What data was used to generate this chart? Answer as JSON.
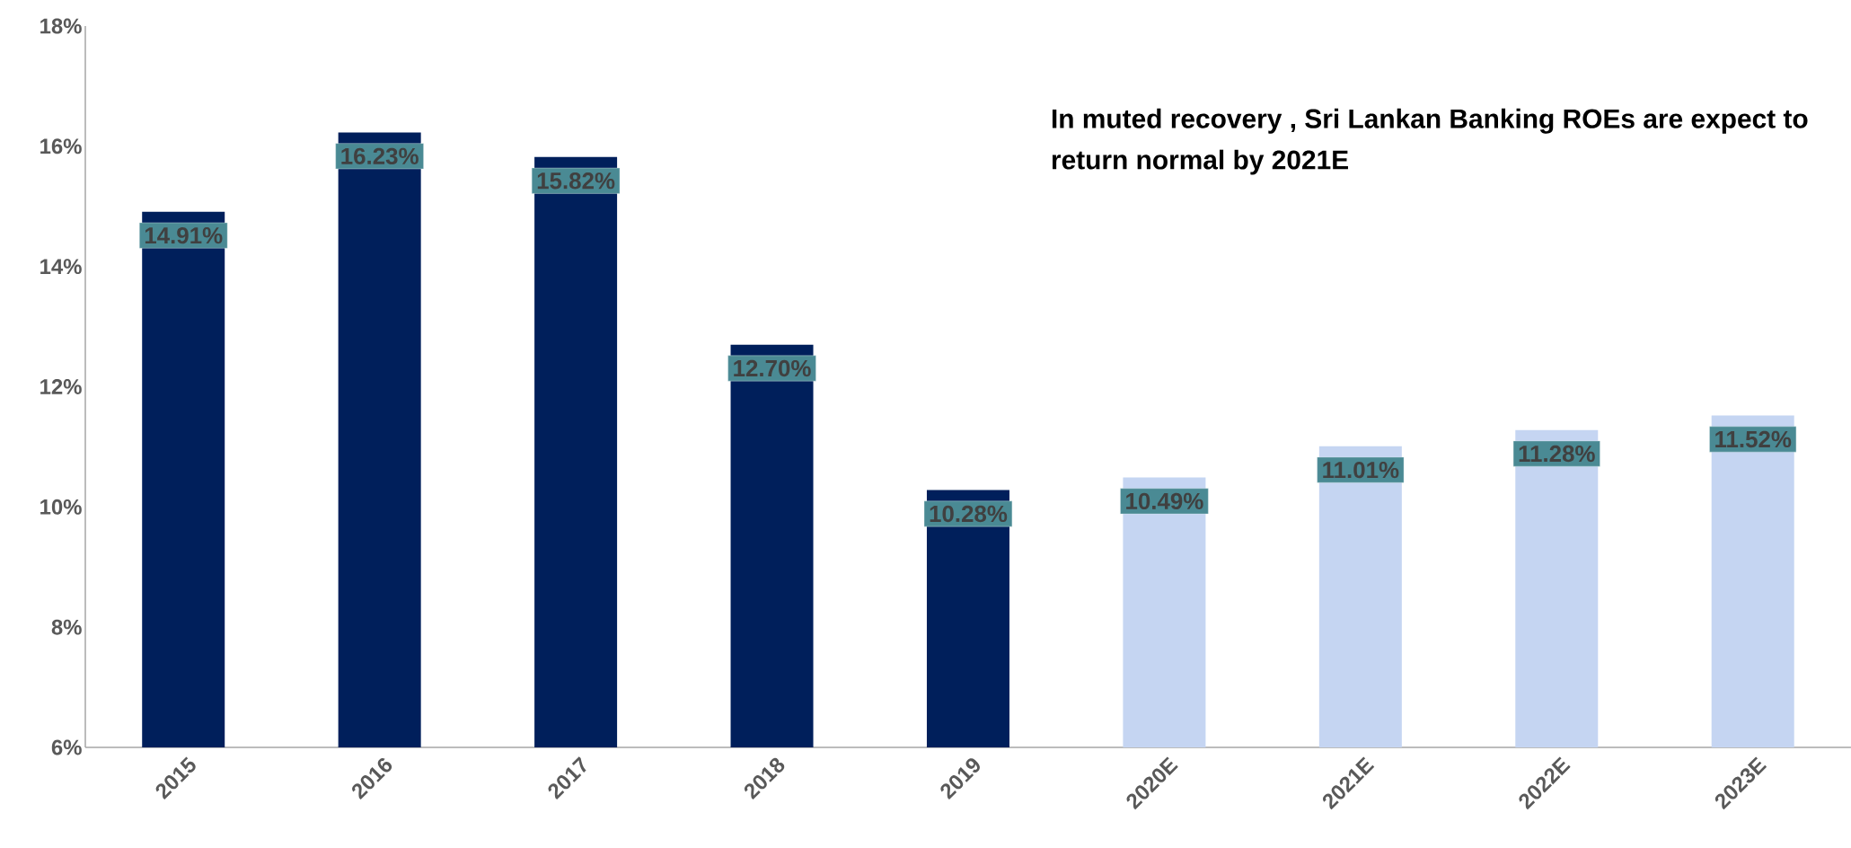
{
  "chart_data": {
    "type": "bar",
    "categories": [
      "2015",
      "2016",
      "2017",
      "2018",
      "2019",
      "2020E",
      "2021E",
      "2022E",
      "2023E"
    ],
    "values": [
      14.91,
      16.23,
      15.82,
      12.7,
      10.28,
      10.49,
      11.01,
      11.28,
      11.52
    ],
    "value_labels": [
      "14.91%",
      "16.23%",
      "15.82%",
      "12.70%",
      "10.28%",
      "10.49%",
      "11.01%",
      "11.28%",
      "11.52%"
    ],
    "colors": [
      "#001f5b",
      "#001f5b",
      "#001f5b",
      "#001f5b",
      "#001f5b",
      "#c5d5f2",
      "#c5d5f2",
      "#c5d5f2",
      "#c5d5f2"
    ],
    "ylim": [
      6,
      18
    ],
    "yticks": [
      {
        "value": 6,
        "label": "6%"
      },
      {
        "value": 8,
        "label": "8%"
      },
      {
        "value": 10,
        "label": "10%"
      },
      {
        "value": 12,
        "label": "12%"
      },
      {
        "value": 14,
        "label": "14%"
      },
      {
        "value": 16,
        "label": "16%"
      },
      {
        "value": 18,
        "label": "18%"
      }
    ],
    "grid": false,
    "annotations": [
      "In muted recovery , Sri Lankan Banking ROEs are expect to return normal by 2021E"
    ]
  }
}
